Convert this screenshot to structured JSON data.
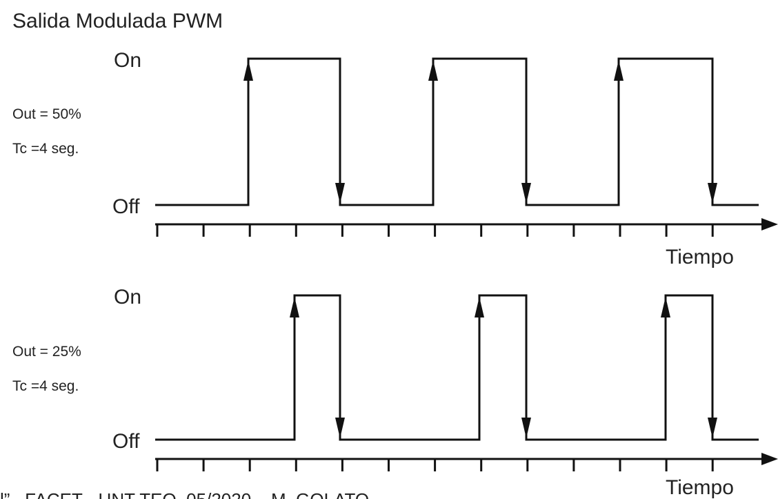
{
  "title": "Salida Modulada PWM",
  "panels": [
    {
      "on": "On",
      "off": "Off",
      "out": "Out = 50%",
      "tc": "Tc =4 seg.",
      "axis": "Tiempo"
    },
    {
      "on": "On",
      "off": "Off",
      "out": "Out = 25%",
      "tc": "Tc =4 seg.",
      "axis": "Tiempo"
    }
  ],
  "footer": "l”– FACET - UNT TEO_05/2020 – M. GOLATO"
}
